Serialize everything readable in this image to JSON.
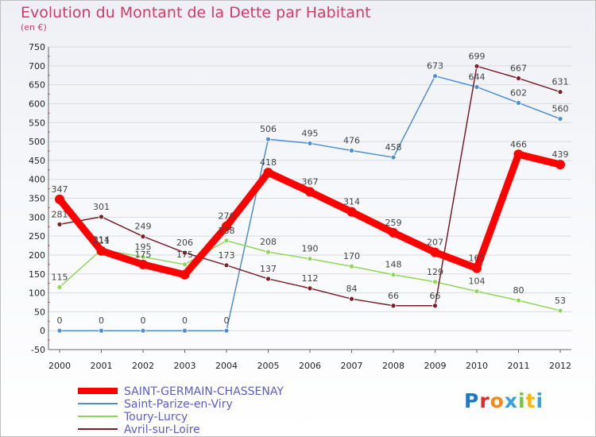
{
  "header": {
    "title": "Evolution du Montant de la Dette par Habitant",
    "unit": "(en €)"
  },
  "logo": {
    "text": "Proxiti",
    "letter_colors": [
      "#1e78c8",
      "#e8262a",
      "#f08a1c",
      "#3aa0d8",
      "#7cc242",
      "#f6b80a",
      "#3aa0d8"
    ]
  },
  "chart_data": {
    "type": "line",
    "title": "Evolution du Montant de la Dette par Habitant",
    "ylabel": "(en €)",
    "xlabel": "",
    "ylim": [
      -50,
      750
    ],
    "yticks": [
      -50,
      0,
      50,
      100,
      150,
      200,
      250,
      300,
      350,
      400,
      450,
      500,
      550,
      600,
      650,
      700,
      750
    ],
    "x": [
      "2000",
      "2001",
      "2002",
      "2003",
      "2004",
      "2005",
      "2006",
      "2007",
      "2008",
      "2009",
      "2010",
      "2011",
      "2012"
    ],
    "grid": "horizontal",
    "legend_position": "bottom-left",
    "series": [
      {
        "name": "SAINT-GERMAIN-CHASSENAY",
        "color": "#ff0000",
        "emphasis": true,
        "values": [
          347,
          211,
          175,
          148,
          276,
          418,
          367,
          314,
          259,
          207,
          165,
          466,
          439
        ],
        "labels": [
          "347",
          "211",
          "175",
          "",
          "276",
          "418",
          "367",
          "314",
          "259",
          "207",
          "165",
          "466",
          "439"
        ]
      },
      {
        "name": "Saint-Parize-en-Viry",
        "color": "#4d8fd1",
        "emphasis": false,
        "values": [
          0,
          0,
          0,
          0,
          0,
          506,
          495,
          476,
          458,
          673,
          644,
          602,
          560
        ],
        "labels": [
          "0",
          "0",
          "0",
          "0",
          "0",
          "506",
          "495",
          "476",
          "458",
          "673",
          "644",
          "602",
          "560"
        ]
      },
      {
        "name": "Toury-Lurcy",
        "color": "#8fd65a",
        "emphasis": false,
        "values": [
          115,
          214,
          195,
          175,
          238,
          208,
          190,
          170,
          148,
          129,
          104,
          80,
          53
        ],
        "labels": [
          "115",
          "214",
          "195",
          "175",
          "238",
          "208",
          "190",
          "170",
          "148",
          "129",
          "104",
          "80",
          "53"
        ]
      },
      {
        "name": "Avril-sur-Loire",
        "color": "#7a1f2a",
        "emphasis": false,
        "values": [
          281,
          301,
          249,
          206,
          173,
          137,
          112,
          84,
          66,
          66,
          699,
          667,
          631
        ],
        "labels": [
          "281",
          "301",
          "249",
          "206",
          "173",
          "137",
          "112",
          "84",
          "66",
          "66",
          "699",
          "667",
          "631"
        ]
      }
    ]
  }
}
